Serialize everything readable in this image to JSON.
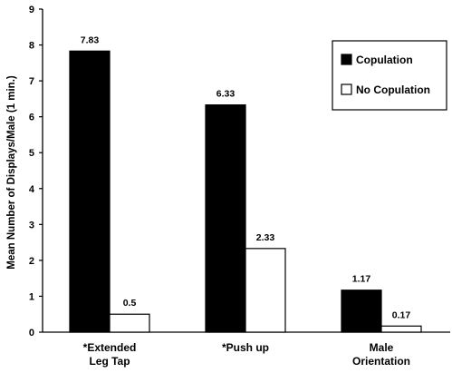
{
  "chart_data": {
    "type": "bar",
    "title": "",
    "xlabel": "",
    "ylabel": "Mean Number of Displays/Male (1 min.)",
    "ylim": [
      0,
      9
    ],
    "yticks": [
      "0",
      "1",
      "2",
      "3",
      "4",
      "5",
      "6",
      "7",
      "8",
      "9"
    ],
    "categories": [
      [
        "*Extended",
        "Leg Tap"
      ],
      [
        "*Push up"
      ],
      [
        "Male",
        "Orientation"
      ]
    ],
    "series": [
      {
        "name": "Copulation",
        "color": "#000000",
        "values": [
          7.83,
          6.33,
          1.17
        ],
        "labels": [
          "7.83",
          "6.33",
          "1.17"
        ]
      },
      {
        "name": "No Copulation",
        "color": "#ffffff",
        "values": [
          0.5,
          2.33,
          0.17
        ],
        "labels": [
          "0.5",
          "2.33",
          "0.17"
        ]
      }
    ],
    "legend_position": "top-right",
    "grid": false
  }
}
